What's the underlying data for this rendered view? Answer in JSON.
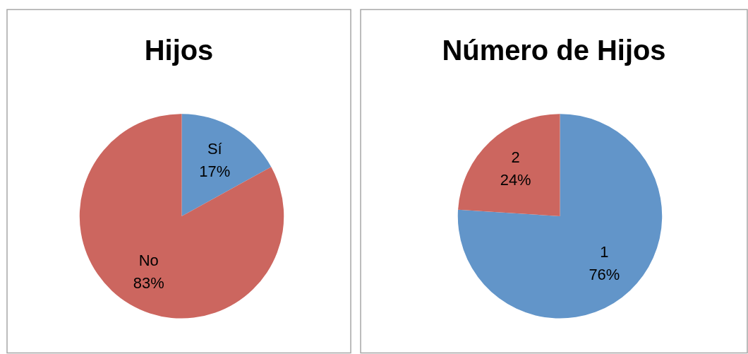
{
  "chart_data": [
    {
      "type": "pie",
      "title": "Hijos",
      "categories": [
        "Sí",
        "No"
      ],
      "values": [
        17,
        83
      ],
      "colors": [
        "#6295c9",
        "#cc665f"
      ],
      "value_labels": [
        "17%",
        "83%"
      ]
    },
    {
      "type": "pie",
      "title": "Número de Hijos",
      "categories": [
        "1",
        "2"
      ],
      "values": [
        76,
        24
      ],
      "colors": [
        "#6295c9",
        "#cc665f"
      ],
      "value_labels": [
        "76%",
        "24%"
      ]
    }
  ]
}
